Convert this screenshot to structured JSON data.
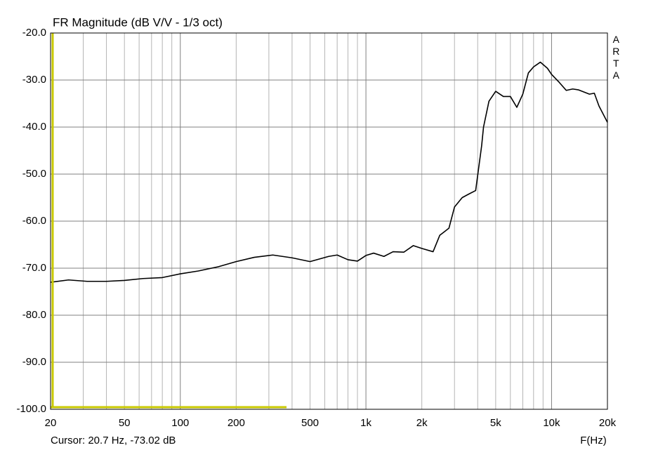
{
  "chart_data": {
    "type": "line",
    "title": "FR Magnitude (dB V/V - 1/3 oct)",
    "watermark": "ARTA",
    "xlabel": "F(Hz)",
    "cursor_text": "Cursor: 20.7 Hz, -73.02 dB",
    "xscale": "log",
    "grid": true,
    "color": "#000000",
    "xlim": [
      20,
      20000
    ],
    "ylim": [
      -100,
      -20
    ],
    "xticks": [
      20,
      50,
      100,
      200,
      500,
      {
        "value": 1000,
        "label": "1k"
      },
      {
        "value": 2000,
        "label": "2k"
      },
      {
        "value": 5000,
        "label": "5k"
      },
      {
        "value": 10000,
        "label": "10k"
      },
      {
        "value": 20000,
        "label": "20k"
      }
    ],
    "yticks": [
      {
        "value": -20,
        "label": "-20.0"
      },
      {
        "value": -30,
        "label": "-30.0"
      },
      {
        "value": -40,
        "label": "-40.0"
      },
      {
        "value": -50,
        "label": "-50.0"
      },
      {
        "value": -60,
        "label": "-60.0"
      },
      {
        "value": -70,
        "label": "-70.0"
      },
      {
        "value": -80,
        "label": "-80.0"
      },
      {
        "value": -90,
        "label": "-90.0"
      },
      {
        "value": -100,
        "label": "-100.0"
      }
    ],
    "x": [
      20,
      25,
      31.5,
      40,
      50,
      63,
      80,
      100,
      125,
      160,
      200,
      250,
      315,
      400,
      500,
      630,
      700,
      800,
      900,
      1000,
      1100,
      1250,
      1400,
      1600,
      1800,
      2000,
      2300,
      2500,
      2800,
      3000,
      3300,
      3600,
      3900,
      4200,
      4300,
      4600,
      5000,
      5500,
      6000,
      6500,
      7000,
      7500,
      8000,
      8700,
      9500,
      10000,
      11000,
      12000,
      13000,
      14000,
      16000,
      17000,
      18000,
      20000
    ],
    "values": [
      -73,
      -72.5,
      -72.8,
      -72.8,
      -72.6,
      -72.2,
      -72.0,
      -71.2,
      -70.6,
      -69.7,
      -68.6,
      -67.7,
      -67.2,
      -67.8,
      -68.6,
      -67.5,
      -67.2,
      -68.2,
      -68.5,
      -67.3,
      -66.8,
      -67.5,
      -66.5,
      -66.6,
      -65.2,
      -65.8,
      -66.5,
      -63,
      -61.5,
      -57,
      -55,
      -54.2,
      -53.5,
      -44,
      -40,
      -34.5,
      -32.4,
      -33.5,
      -33.5,
      -35.8,
      -33,
      -28.5,
      -27.2,
      -26.2,
      -27.5,
      -28.8,
      -30.5,
      -32.2,
      -31.9,
      -32.1,
      -33,
      -32.8,
      -35.5,
      -39
    ]
  }
}
